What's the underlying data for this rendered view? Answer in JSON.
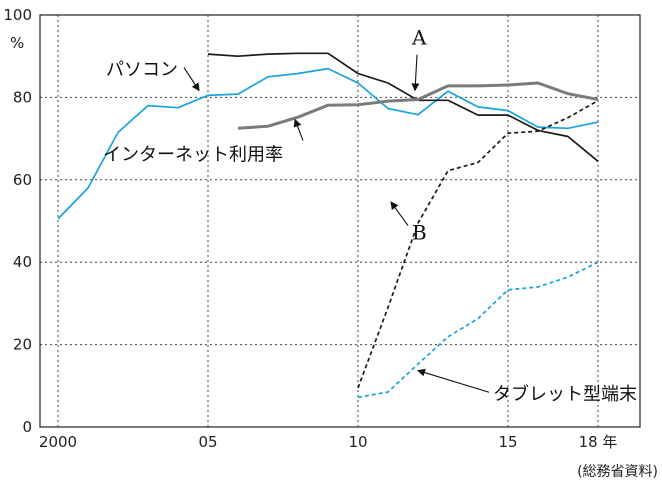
{
  "chart_data": {
    "type": "line",
    "x": [
      2000,
      2001,
      2002,
      2003,
      2004,
      2005,
      2006,
      2007,
      2008,
      2009,
      2010,
      2011,
      2012,
      2013,
      2014,
      2015,
      2016,
      2017,
      2018
    ],
    "xlim": [
      1999.4,
      2019.4
    ],
    "ylim": [
      0,
      100
    ],
    "x_tick_labels": [
      {
        "x": 2000,
        "label": "2000"
      },
      {
        "x": 2005,
        "label": "05"
      },
      {
        "x": 2010,
        "label": "10"
      },
      {
        "x": 2015,
        "label": "15"
      },
      {
        "x": 2018,
        "label": "18 年"
      }
    ],
    "y_ticks": [
      0,
      20,
      40,
      60,
      80,
      100
    ],
    "y_unit": "%",
    "grid": true,
    "source": "(総務省資料)",
    "series": [
      {
        "name": "パソコン",
        "color": "#1aa3dc",
        "dashed": false,
        "values": [
          50.5,
          58,
          71.5,
          78,
          77.5,
          80.5,
          80.8,
          85,
          85.8,
          87,
          83.5,
          77.3,
          75.8,
          81.5,
          77.7,
          76.8,
          72.8,
          72.5,
          74
        ]
      },
      {
        "name": "A",
        "color": "#1a1a1a",
        "dashed": false,
        "values": [
          null,
          null,
          null,
          null,
          null,
          90.5,
          90,
          90.5,
          90.7,
          90.7,
          85.8,
          83.5,
          79.3,
          79.3,
          75.7,
          75.7,
          72,
          70.5,
          64.5
        ]
      },
      {
        "name": "インターネット利用率",
        "color": "#7b7b7b",
        "dashed": false,
        "values": [
          null,
          null,
          null,
          null,
          null,
          null,
          72.5,
          73,
          75.2,
          78.1,
          78.2,
          79.1,
          79.5,
          82.8,
          82.8,
          83,
          83.5,
          80.9,
          79.5
        ]
      },
      {
        "name": "B",
        "color": "#1a1a1a",
        "dashed": true,
        "values": [
          null,
          null,
          null,
          null,
          null,
          null,
          null,
          null,
          null,
          null,
          9.5,
          29,
          49.5,
          62.2,
          64.2,
          71.3,
          71.8,
          75.1,
          79.2
        ]
      },
      {
        "name": "タブレット型端末",
        "color": "#1aa3dc",
        "dashed": true,
        "values": [
          null,
          null,
          null,
          null,
          null,
          null,
          null,
          null,
          null,
          null,
          7.2,
          8.5,
          15.3,
          21.9,
          26.3,
          33.3,
          34,
          36.4,
          40
        ]
      }
    ],
    "annotations": [
      {
        "text": "パソコン",
        "series": "パソコン",
        "label_x": 2001.6,
        "label_y": 85.3,
        "arrow_x": 2004.7,
        "arrow_y": 81.7
      },
      {
        "text": "インターネット利用率",
        "series": "インターネット利用率",
        "label_x": 2001.5,
        "label_y": 64.7,
        "arrow_x": 2007.9,
        "arrow_y": 74.6
      },
      {
        "text": "A",
        "series": "A",
        "label_x": 2011.8,
        "label_y": 92.8,
        "arrow_x": 2011.9,
        "arrow_y": 81.7
      },
      {
        "text": "B",
        "series": "B",
        "label_x": 2011.8,
        "label_y": 45.5,
        "arrow_x": 2011.1,
        "arrow_y": 54.6
      },
      {
        "text": "タブレット型端末",
        "series": "タブレット型端末",
        "label_x": 2014.5,
        "label_y": 6.5,
        "arrow_x": 2012.0,
        "arrow_y": 13.7
      }
    ]
  }
}
